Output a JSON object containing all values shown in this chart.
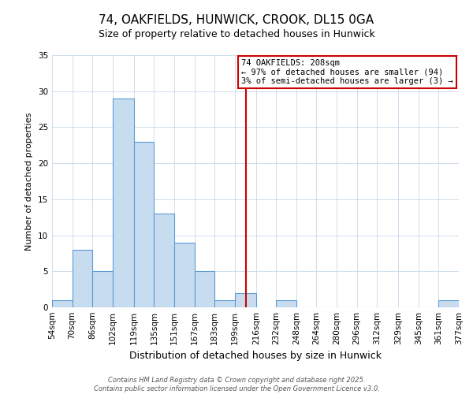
{
  "title": "74, OAKFIELDS, HUNWICK, CROOK, DL15 0GA",
  "subtitle": "Size of property relative to detached houses in Hunwick",
  "xlabel": "Distribution of detached houses by size in Hunwick",
  "ylabel": "Number of detached properties",
  "bin_edges": [
    54,
    70,
    86,
    102,
    119,
    135,
    151,
    167,
    183,
    199,
    216,
    232,
    248,
    264,
    280,
    296,
    312,
    329,
    345,
    361,
    377
  ],
  "bin_labels": [
    "54sqm",
    "70sqm",
    "86sqm",
    "102sqm",
    "119sqm",
    "135sqm",
    "151sqm",
    "167sqm",
    "183sqm",
    "199sqm",
    "216sqm",
    "232sqm",
    "248sqm",
    "264sqm",
    "280sqm",
    "296sqm",
    "312sqm",
    "329sqm",
    "345sqm",
    "361sqm",
    "377sqm"
  ],
  "counts": [
    1,
    8,
    5,
    29,
    23,
    13,
    9,
    5,
    1,
    2,
    0,
    1,
    0,
    0,
    0,
    0,
    0,
    0,
    0,
    1
  ],
  "bar_facecolor": "#c8dcf0",
  "bar_edgecolor": "#5b9bd5",
  "vline_x": 208,
  "vline_color": "#cc0000",
  "ylim": [
    0,
    35
  ],
  "yticks": [
    0,
    5,
    10,
    15,
    20,
    25,
    30,
    35
  ],
  "annotation_title": "74 OAKFIELDS: 208sqm",
  "annotation_line1": "← 97% of detached houses are smaller (94)",
  "annotation_line2": "3% of semi-detached houses are larger (3) →",
  "annotation_box_edgecolor": "#cc0000",
  "footer_line1": "Contains HM Land Registry data © Crown copyright and database right 2025.",
  "footer_line2": "Contains public sector information licensed under the Open Government Licence v3.0.",
  "background_color": "#ffffff",
  "grid_color": "#c8d8e8",
  "title_fontsize": 11,
  "subtitle_fontsize": 9,
  "xlabel_fontsize": 9,
  "ylabel_fontsize": 8,
  "tick_fontsize": 7.5,
  "annotation_fontsize": 7.5,
  "footer_fontsize": 6
}
